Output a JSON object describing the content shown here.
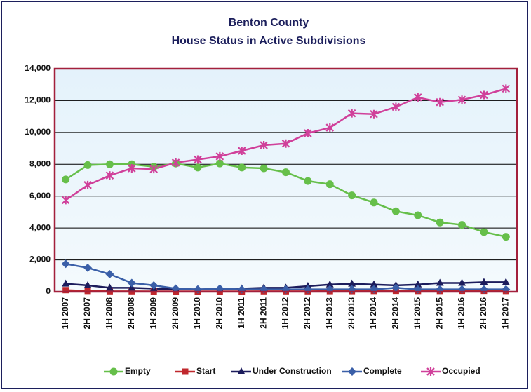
{
  "chart_data": {
    "type": "line",
    "title": "Benton County",
    "subtitle": "House Status in Active Subdivisions",
    "categories": [
      "1H 2007",
      "2H 2007",
      "1H 2008",
      "2H 2008",
      "1H 2009",
      "2H 2009",
      "1H 2010",
      "2H 2010",
      "1H 2011",
      "2H 2011",
      "1H 2012",
      "2H 2012",
      "1H 2013",
      "2H 2013",
      "1H 2014",
      "2H 2014",
      "1H 2015",
      "2H 2015",
      "1H 2016",
      "2H 2016",
      "1H 2017"
    ],
    "series": [
      {
        "name": "Empty",
        "color": "#66bf4a",
        "marker": "circle",
        "values": [
          7050,
          7950,
          8000,
          8000,
          7850,
          8050,
          7800,
          8050,
          7800,
          7750,
          7500,
          6950,
          6750,
          6050,
          5600,
          5050,
          4800,
          4350,
          4200,
          3750,
          3450
        ]
      },
      {
        "name": "Start",
        "color": "#c0282d",
        "marker": "square",
        "values": [
          100,
          50,
          30,
          30,
          20,
          20,
          20,
          20,
          20,
          30,
          30,
          30,
          40,
          40,
          50,
          60,
          50,
          50,
          60,
          60,
          50
        ]
      },
      {
        "name": "Under Construction",
        "color": "#1c1c5c",
        "marker": "triangle",
        "values": [
          500,
          400,
          250,
          250,
          200,
          150,
          150,
          150,
          200,
          250,
          250,
          350,
          450,
          500,
          450,
          400,
          450,
          550,
          550,
          600,
          600
        ]
      },
      {
        "name": "Complete",
        "color": "#3a5fa8",
        "marker": "diamond",
        "values": [
          1750,
          1500,
          1100,
          550,
          400,
          200,
          150,
          200,
          150,
          150,
          150,
          150,
          150,
          150,
          150,
          250,
          150,
          150,
          150,
          150,
          150
        ]
      },
      {
        "name": "Occupied",
        "color": "#d0409a",
        "marker": "star",
        "values": [
          5750,
          6700,
          7300,
          7750,
          7700,
          8100,
          8300,
          8500,
          8850,
          9200,
          9300,
          9950,
          10300,
          11200,
          11150,
          11600,
          12200,
          11900,
          12050,
          12350,
          12750
        ]
      }
    ],
    "ylim": [
      0,
      14000
    ],
    "yticks": [
      0,
      {
        "value": 2000,
        "label": "2,000"
      },
      {
        "value": 4000,
        "label": "4,000"
      },
      {
        "value": 6000,
        "label": "6,000"
      },
      {
        "value": 8000,
        "label": "8,000"
      },
      {
        "value": 10000,
        "label": "10,000"
      },
      {
        "value": 12000,
        "label": "12,000"
      },
      {
        "value": 14000,
        "label": "14,000"
      }
    ],
    "grid": true,
    "legend": "bottom"
  }
}
